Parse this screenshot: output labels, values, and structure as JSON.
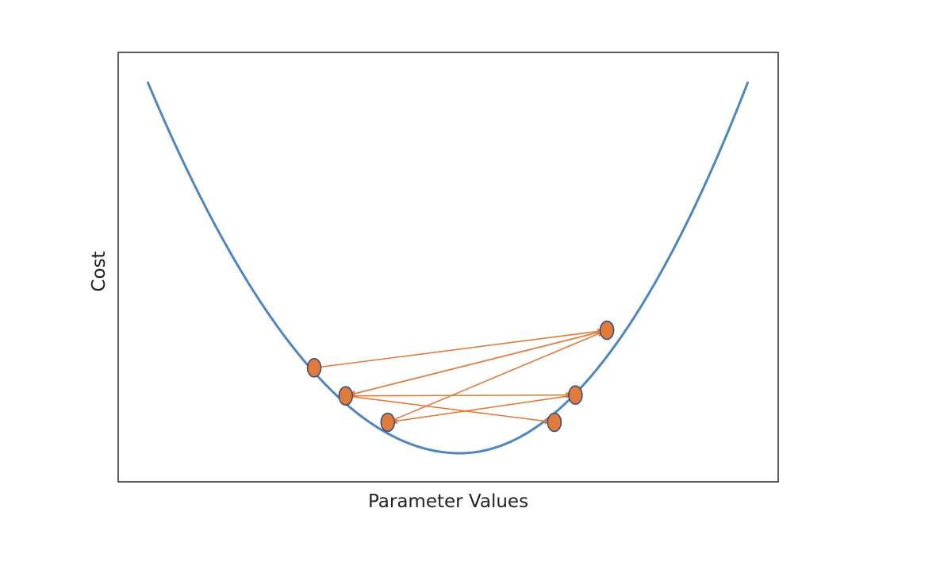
{
  "chart_data": {
    "type": "line",
    "xlabel": "Parameter Values",
    "ylabel": "Cost",
    "xticks": [],
    "yticks": [],
    "grid": false,
    "curve": {
      "shape": "parabola",
      "x_range": [
        -1,
        1
      ],
      "vertex_x": 0.04,
      "min_cost": 0.05,
      "edge_cost": 0.95,
      "color": "#4f86be"
    },
    "points": {
      "color": "#e07b3c",
      "outline": "#3d4f7a",
      "items": [
        {
          "x": -0.445,
          "y": 0.257
        },
        {
          "x": 0.53,
          "y": 0.348
        },
        {
          "x": -0.34,
          "y": 0.189
        },
        {
          "x": 0.425,
          "y": 0.191
        },
        {
          "x": -0.2,
          "y": 0.125
        },
        {
          "x": 0.355,
          "y": 0.125
        }
      ]
    },
    "arrows": {
      "color": "#e07b3c",
      "segments": [
        [
          0,
          1
        ],
        [
          1,
          2
        ],
        [
          2,
          3
        ],
        [
          3,
          4
        ],
        [
          4,
          1
        ],
        [
          1,
          2
        ],
        [
          2,
          5
        ]
      ]
    }
  }
}
